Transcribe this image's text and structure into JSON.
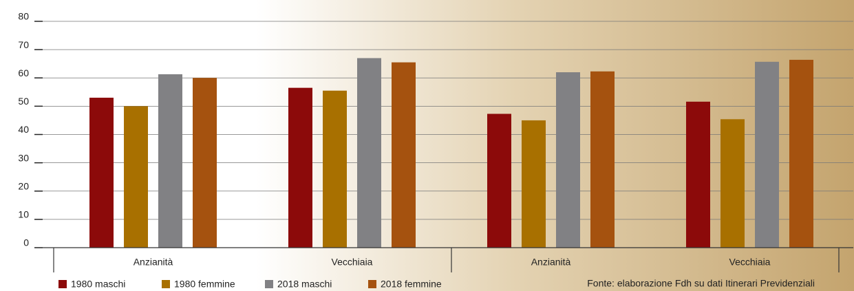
{
  "chart_data": {
    "type": "bar",
    "categories": [
      "Anzianità",
      "Vecchiaia",
      "Anzianità",
      "Vecchiaia"
    ],
    "series": [
      {
        "name": "1980 maschi",
        "color": "#8c0a0a",
        "values": [
          53,
          56.5,
          47.3,
          51.6
        ]
      },
      {
        "name": "1980 femmine",
        "color": "#a87000",
        "values": [
          50,
          55.5,
          45,
          45.4
        ]
      },
      {
        "name": "2018 maschi",
        "color": "#818184",
        "values": [
          61.3,
          67,
          62,
          65.7
        ]
      },
      {
        "name": "2018 femmine",
        "color": "#a5520f",
        "values": [
          60,
          65.5,
          62.3,
          66.4
        ]
      }
    ],
    "ylim": [
      0,
      80
    ],
    "yticks": [
      0,
      10,
      20,
      30,
      40,
      50,
      60,
      70,
      80
    ],
    "grid": true,
    "source": "Fonte: elaborazione Fdh su dati Itinerari Previdenziali"
  }
}
